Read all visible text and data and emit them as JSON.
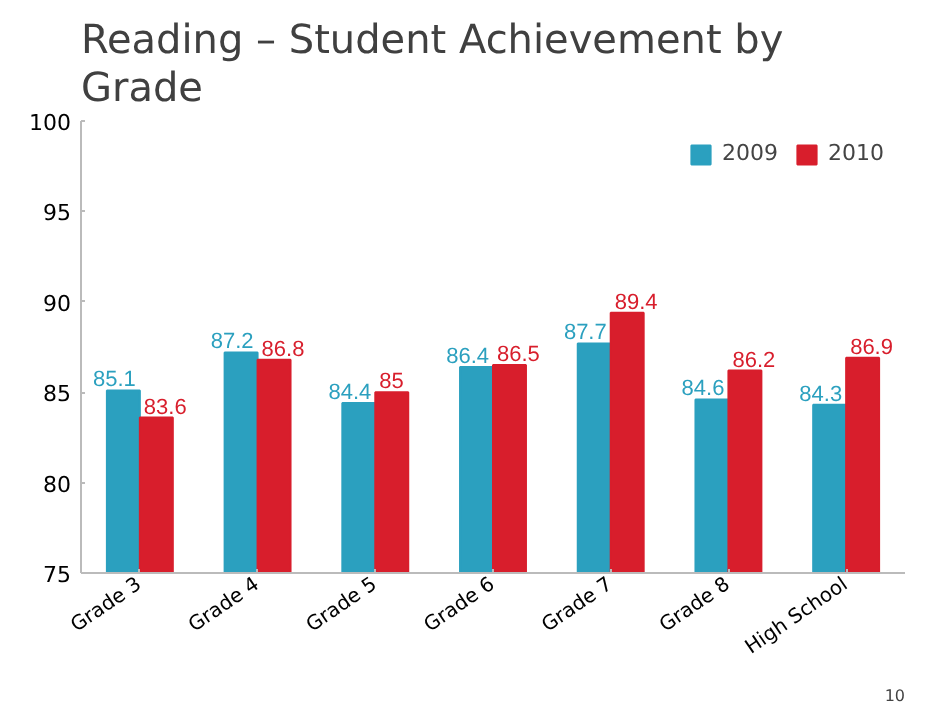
{
  "chart_data": {
    "type": "bar",
    "title": "Reading – Student Achievement by Grade",
    "categories": [
      "Grade 3",
      "Grade 4",
      "Grade 5",
      "Grade 6",
      "Grade 7",
      "Grade 8",
      "High School"
    ],
    "series": [
      {
        "name": "2009",
        "color": "#2ba0bf",
        "values": [
          85.1,
          87.2,
          84.4,
          86.4,
          87.7,
          84.6,
          84.3
        ]
      },
      {
        "name": "2010",
        "color": "#d81e2c",
        "values": [
          83.6,
          86.8,
          85,
          86.5,
          89.4,
          86.2,
          86.9
        ]
      }
    ],
    "ylim": [
      75,
      100
    ],
    "yticks": [
      75,
      80,
      85,
      90,
      95,
      100
    ],
    "data_labels": true,
    "legend": "top right",
    "grid": false,
    "annotations": [
      "10"
    ]
  }
}
